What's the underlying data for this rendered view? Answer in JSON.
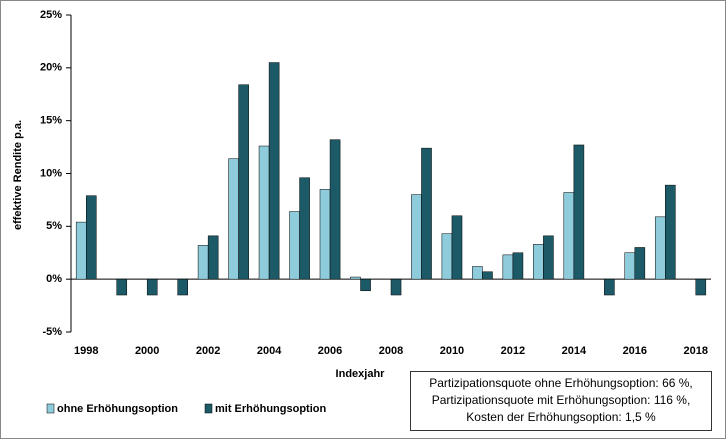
{
  "chart_data": {
    "type": "bar",
    "y_label": "effektive Rendite p.a.",
    "x_label": "Indexjahr",
    "categories": [
      "1998",
      null,
      "2000",
      null,
      "2002",
      null,
      "2004",
      null,
      "2006",
      null,
      "2008",
      null,
      "2010",
      null,
      "2012",
      null,
      "2014",
      null,
      "2016",
      null,
      "2018"
    ],
    "series": [
      {
        "name": "ohne Erhöhungsoption",
        "color": "#8ecbdb",
        "values": [
          5.4,
          0,
          0,
          0,
          3.2,
          11.4,
          12.6,
          6.4,
          8.5,
          0.2,
          0,
          8.0,
          4.3,
          1.2,
          2.3,
          3.3,
          8.2,
          0,
          2.5,
          5.9,
          0
        ]
      },
      {
        "name": "mit Erhöhungsoption",
        "color": "#1d5a68",
        "values": [
          7.9,
          -1.5,
          -1.5,
          -1.5,
          4.1,
          18.4,
          20.5,
          9.6,
          13.2,
          -1.1,
          -1.5,
          12.4,
          6.0,
          0.7,
          2.5,
          4.1,
          12.7,
          -1.5,
          3.0,
          8.9,
          -1.5
        ]
      }
    ],
    "ylim": [
      -5,
      25
    ],
    "yticks": [
      {
        "value": -5,
        "label": "-5%"
      },
      {
        "value": 0,
        "label": "0%"
      },
      {
        "value": 5,
        "label": "5%"
      },
      {
        "value": 10,
        "label": "10%"
      },
      {
        "value": 15,
        "label": "15%"
      },
      {
        "value": 20,
        "label": "20%"
      },
      {
        "value": 25,
        "label": "25%"
      }
    ],
    "grid": false,
    "annotation": [
      "Partizipationsquote ohne Erhöhungsoption: 66 %,",
      "Partizipationsquote mit Erhöhungsoption: 116 %,",
      "Kosten der Erhöhungsoption: 1,5 %"
    ]
  }
}
